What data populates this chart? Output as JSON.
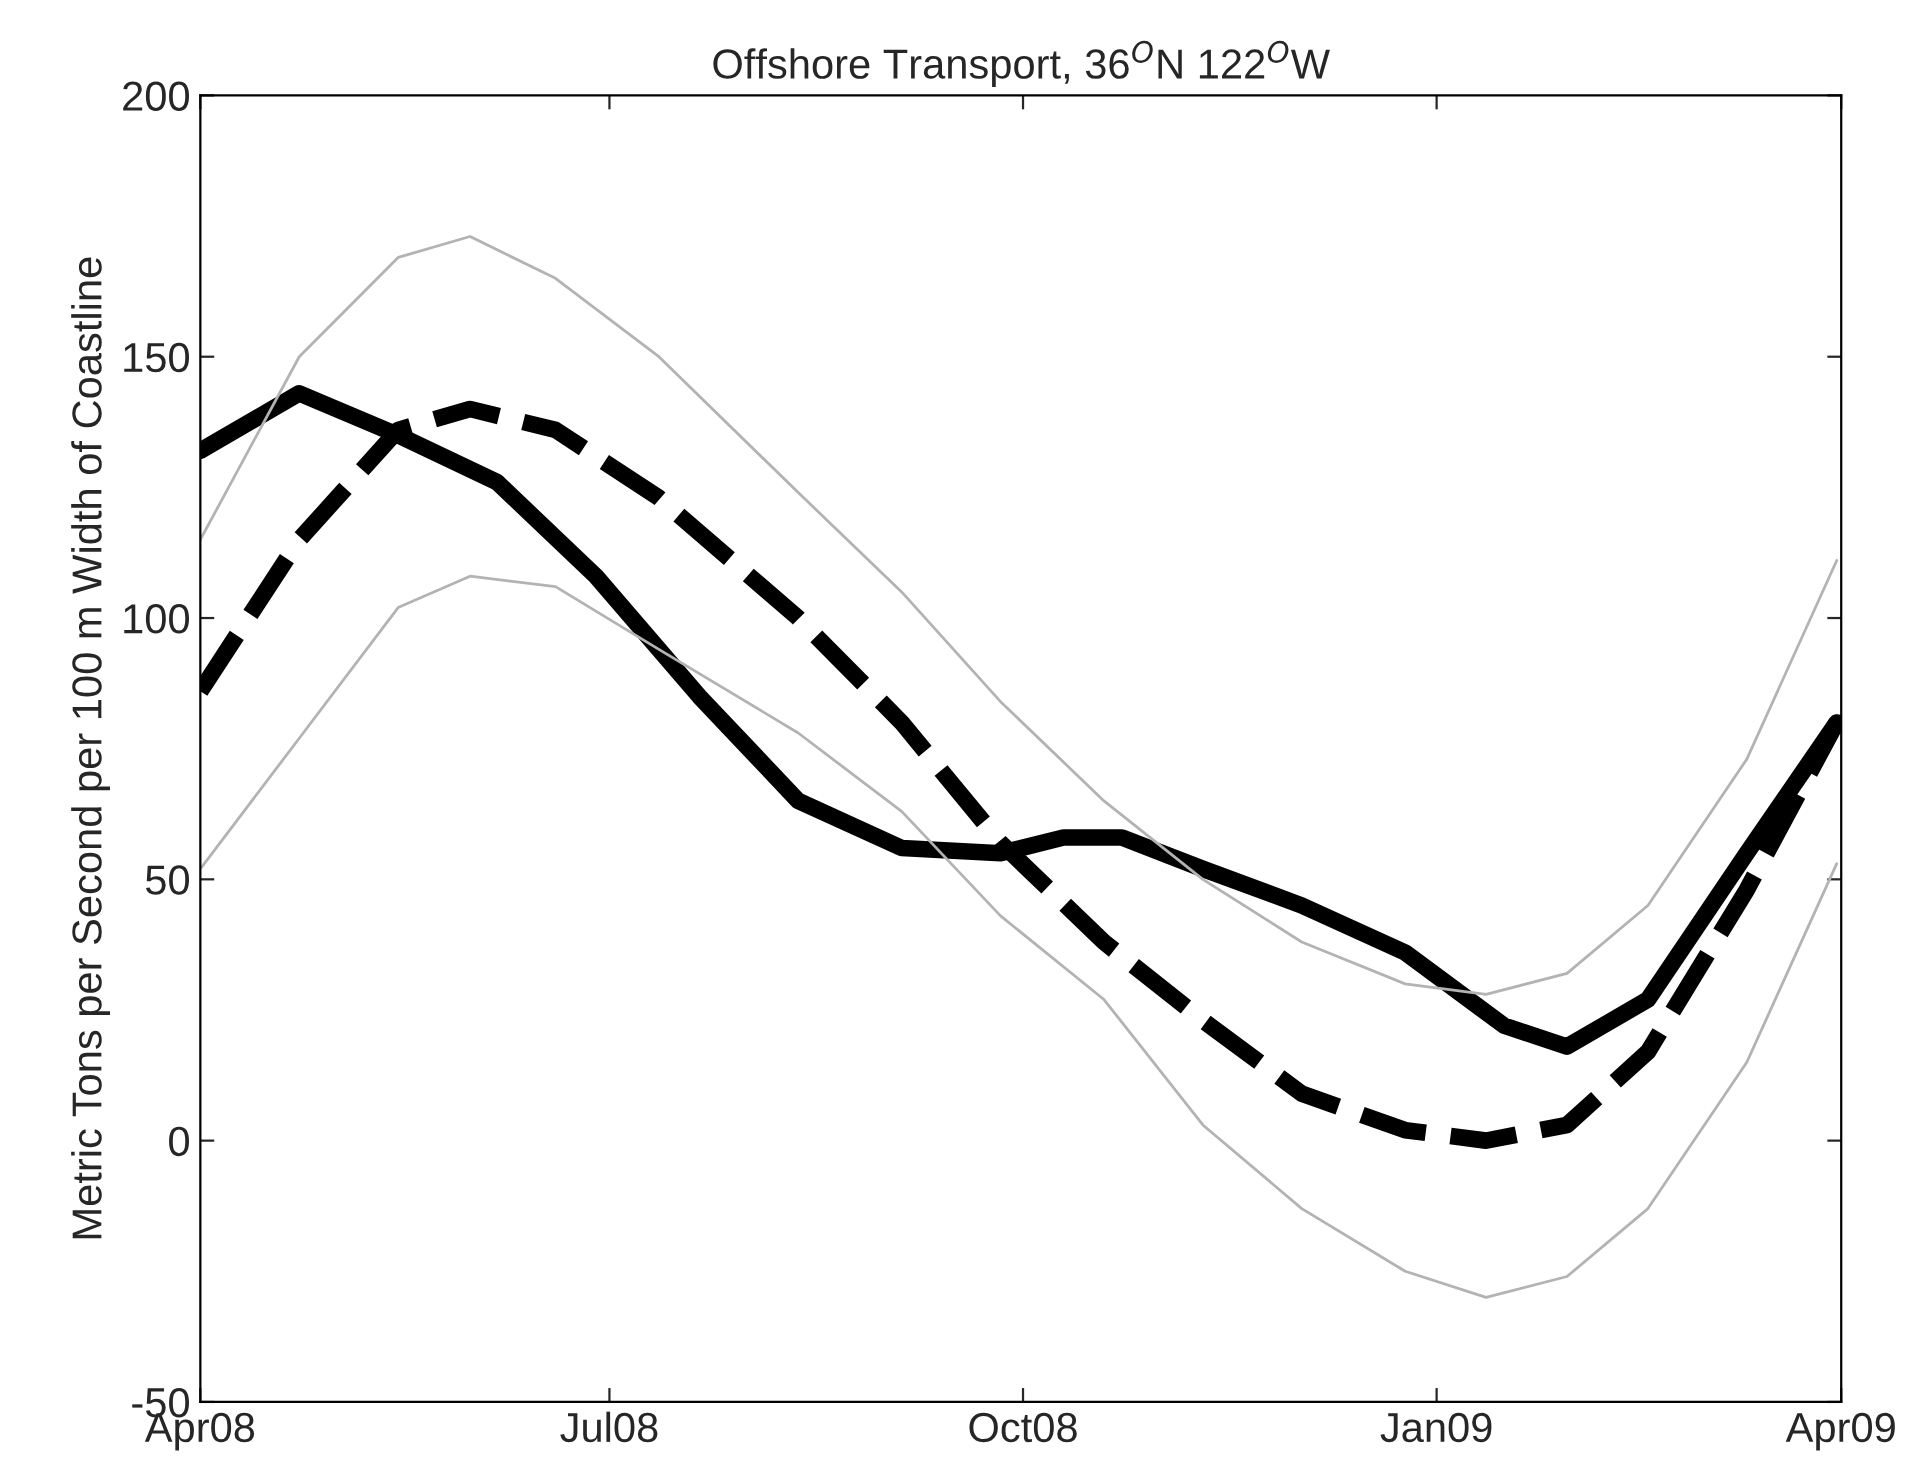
{
  "chart_data": {
    "type": "line",
    "title": "Offshore Transport, 36$^{O}$N 122$^{O}$W",
    "ylabel": "Metric Tons per Second per 100 m Width of Coastline",
    "xlim": [
      "2008-04-01",
      "2009-04-01"
    ],
    "xticks": [
      {
        "value": "2008-04-01",
        "label": "Apr08"
      },
      {
        "value": "2008-07-01",
        "label": "Jul08"
      },
      {
        "value": "2008-10-01",
        "label": "Oct08"
      },
      {
        "value": "2009-01-01",
        "label": "Jan09"
      },
      {
        "value": "2009-04-01",
        "label": "Apr09"
      }
    ],
    "ylim": [
      -50,
      200
    ],
    "yticks": [
      -50,
      0,
      50,
      100,
      150,
      200
    ],
    "grid": false,
    "legend": false,
    "series": [
      {
        "color": "#000000",
        "line_style": "solid",
        "x": [
          "2008-04-01",
          "2008-04-23",
          "2008-05-15",
          "2008-06-06",
          "2008-06-28",
          "2008-07-21",
          "2008-08-12",
          "2008-09-04",
          "2008-09-26",
          "2008-10-10",
          "2008-10-23",
          "2008-11-10",
          "2008-12-02",
          "2008-12-25",
          "2009-01-16",
          "2009-01-30",
          "2009-02-17",
          "2009-03-11",
          "2009-03-31"
        ],
        "values": [
          132,
          143,
          135,
          126,
          108,
          85,
          65,
          56,
          55,
          58,
          58,
          52,
          45,
          36,
          22,
          18,
          27,
          55,
          80
        ]
      },
      {
        "color": "#000000",
        "line_style": "dashed",
        "x": [
          "2008-04-01",
          "2008-04-23",
          "2008-05-15",
          "2008-05-31",
          "2008-06-19",
          "2008-07-12",
          "2008-08-12",
          "2008-09-04",
          "2008-09-26",
          "2008-10-19",
          "2008-11-10",
          "2008-12-02",
          "2008-12-25",
          "2009-01-12",
          "2009-01-30",
          "2009-02-17",
          "2009-03-11",
          "2009-03-31"
        ],
        "values": [
          86,
          115,
          136,
          140,
          136,
          123,
          100,
          80,
          57,
          38,
          23,
          9,
          2,
          0,
          3,
          17,
          48,
          80
        ]
      },
      {
        "color": "#b3b3b3",
        "line_style": "solid",
        "x": [
          "2008-04-01",
          "2008-04-23",
          "2008-05-15",
          "2008-05-31",
          "2008-06-19",
          "2008-07-12",
          "2008-08-12",
          "2008-09-04",
          "2008-09-26",
          "2008-10-19",
          "2008-11-10",
          "2008-12-02",
          "2008-12-25",
          "2009-01-12",
          "2009-01-30",
          "2009-02-17",
          "2009-03-11",
          "2009-03-31"
        ],
        "values": [
          115,
          150,
          169,
          173,
          165,
          150,
          124,
          105,
          84,
          65,
          50,
          38,
          30,
          28,
          32,
          45,
          73,
          111
        ]
      },
      {
        "color": "#b3b3b3",
        "line_style": "solid",
        "x": [
          "2008-04-01",
          "2008-04-23",
          "2008-05-15",
          "2008-05-31",
          "2008-06-19",
          "2008-07-12",
          "2008-08-12",
          "2008-09-04",
          "2008-09-26",
          "2008-10-19",
          "2008-11-10",
          "2008-12-02",
          "2008-12-25",
          "2009-01-12",
          "2009-01-30",
          "2009-02-17",
          "2009-03-11",
          "2009-03-31"
        ],
        "values": [
          52,
          77,
          102,
          108,
          106,
          94,
          78,
          63,
          43,
          27,
          3,
          -13,
          -25,
          -30,
          -26,
          -13,
          15,
          53
        ]
      }
    ]
  }
}
